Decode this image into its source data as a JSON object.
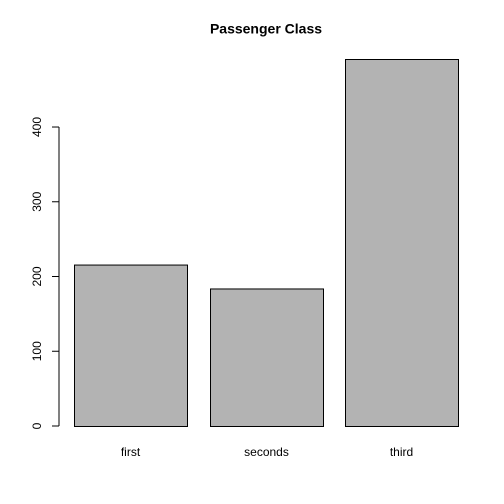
{
  "chart_data": {
    "type": "bar",
    "title": "Passenger Class",
    "categories": [
      "first",
      "seconds",
      "third"
    ],
    "values": [
      216,
      184,
      491
    ],
    "color": "#b3b3b3",
    "ylim": [
      0,
      491
    ],
    "yticks": [
      0,
      100,
      200,
      300,
      400
    ],
    "grid": false
  }
}
